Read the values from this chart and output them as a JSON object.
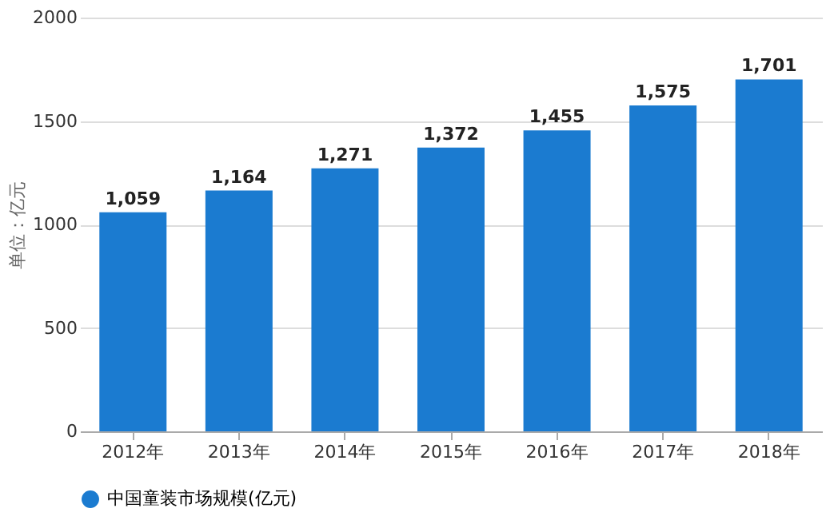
{
  "chart_data": {
    "type": "bar",
    "ylabel": "单位：亿元",
    "categories": [
      "2012年",
      "2013年",
      "2014年",
      "2015年",
      "2016年",
      "2017年",
      "2018年"
    ],
    "series": [
      {
        "name": "中国童装市场规模(亿元)",
        "color": "#1b7bd0",
        "values": [
          1059,
          1164,
          1271,
          1372,
          1455,
          1575,
          1701
        ]
      }
    ],
    "value_labels": [
      "1,059",
      "1,164",
      "1,271",
      "1,372",
      "1,455",
      "1,575",
      "1,701"
    ],
    "ylim": [
      0,
      2000
    ],
    "yticks": [
      0,
      500,
      1000,
      1500,
      2000
    ],
    "grid": "y",
    "legend": "bottom"
  }
}
